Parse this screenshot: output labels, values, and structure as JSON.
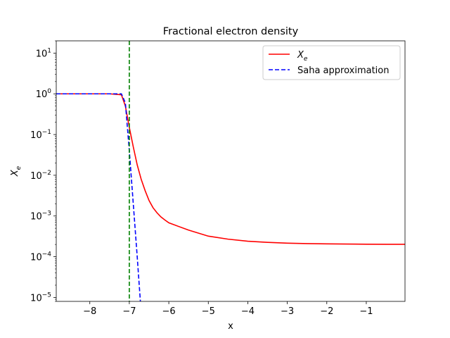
{
  "chart_data": {
    "type": "line",
    "title": "Fractional electron density",
    "xlabel": "x",
    "ylabel": "X_e",
    "xlim": [
      -8.85,
      -0.02
    ],
    "ylim": [
      8e-06,
      20
    ],
    "y_scale": "log",
    "grid": false,
    "legend_position": "top-right",
    "x_ticks": [
      {
        "value": -8,
        "label": "−8"
      },
      {
        "value": -7,
        "label": "−7"
      },
      {
        "value": -6,
        "label": "−6"
      },
      {
        "value": -5,
        "label": "−5"
      },
      {
        "value": -4,
        "label": "−4"
      },
      {
        "value": -3,
        "label": "−3"
      },
      {
        "value": -2,
        "label": "−2"
      },
      {
        "value": -1,
        "label": "−1"
      }
    ],
    "y_ticks": [
      {
        "value": 10,
        "base": "10",
        "exp": "1"
      },
      {
        "value": 1,
        "base": "10",
        "exp": "0"
      },
      {
        "value": 0.1,
        "base": "10",
        "exp": "−1"
      },
      {
        "value": 0.01,
        "base": "10",
        "exp": "−2"
      },
      {
        "value": 0.001,
        "base": "10",
        "exp": "−3"
      },
      {
        "value": 0.0001,
        "base": "10",
        "exp": "−4"
      },
      {
        "value": 1e-05,
        "base": "10",
        "exp": "−5"
      }
    ],
    "vline": {
      "x": -7.0,
      "color": "#008000",
      "style": "dashed"
    },
    "series": [
      {
        "name": "X_e",
        "color": "#ff0000",
        "style": "solid",
        "x": [
          -8.85,
          -7.5,
          -7.2,
          -7.1,
          -7.0,
          -6.9,
          -6.8,
          -6.7,
          -6.6,
          -6.5,
          -6.4,
          -6.3,
          -6.2,
          -6.1,
          -6.0,
          -5.5,
          -5.0,
          -4.5,
          -4.0,
          -3.5,
          -3.0,
          -2.5,
          -2.0,
          -1.5,
          -1.0,
          -0.5,
          -0.02
        ],
        "y": [
          1.0,
          1.0,
          0.95,
          0.5,
          0.15,
          0.05,
          0.018,
          0.008,
          0.0042,
          0.0024,
          0.0016,
          0.0012,
          0.00095,
          0.0008,
          0.00068,
          0.00045,
          0.00032,
          0.00027,
          0.00024,
          0.000225,
          0.000215,
          0.00021,
          0.000207,
          0.000205,
          0.000203,
          0.000202,
          0.000202
        ]
      },
      {
        "name": "Saha approximation",
        "color": "#0000ff",
        "style": "dashed",
        "x": [
          -8.85,
          -7.5,
          -7.2,
          -7.1,
          -7.0,
          -6.9,
          -6.8,
          -6.72
        ],
        "y": [
          1.0,
          1.0,
          1.0,
          0.6,
          0.04,
          0.002,
          0.0001,
          8e-06
        ]
      }
    ],
    "legend": [
      {
        "label_main": "X",
        "label_sub": "e",
        "color": "#ff0000",
        "style": "solid"
      },
      {
        "label_main": "Saha approximation",
        "label_sub": "",
        "color": "#0000ff",
        "style": "dashed"
      }
    ]
  }
}
